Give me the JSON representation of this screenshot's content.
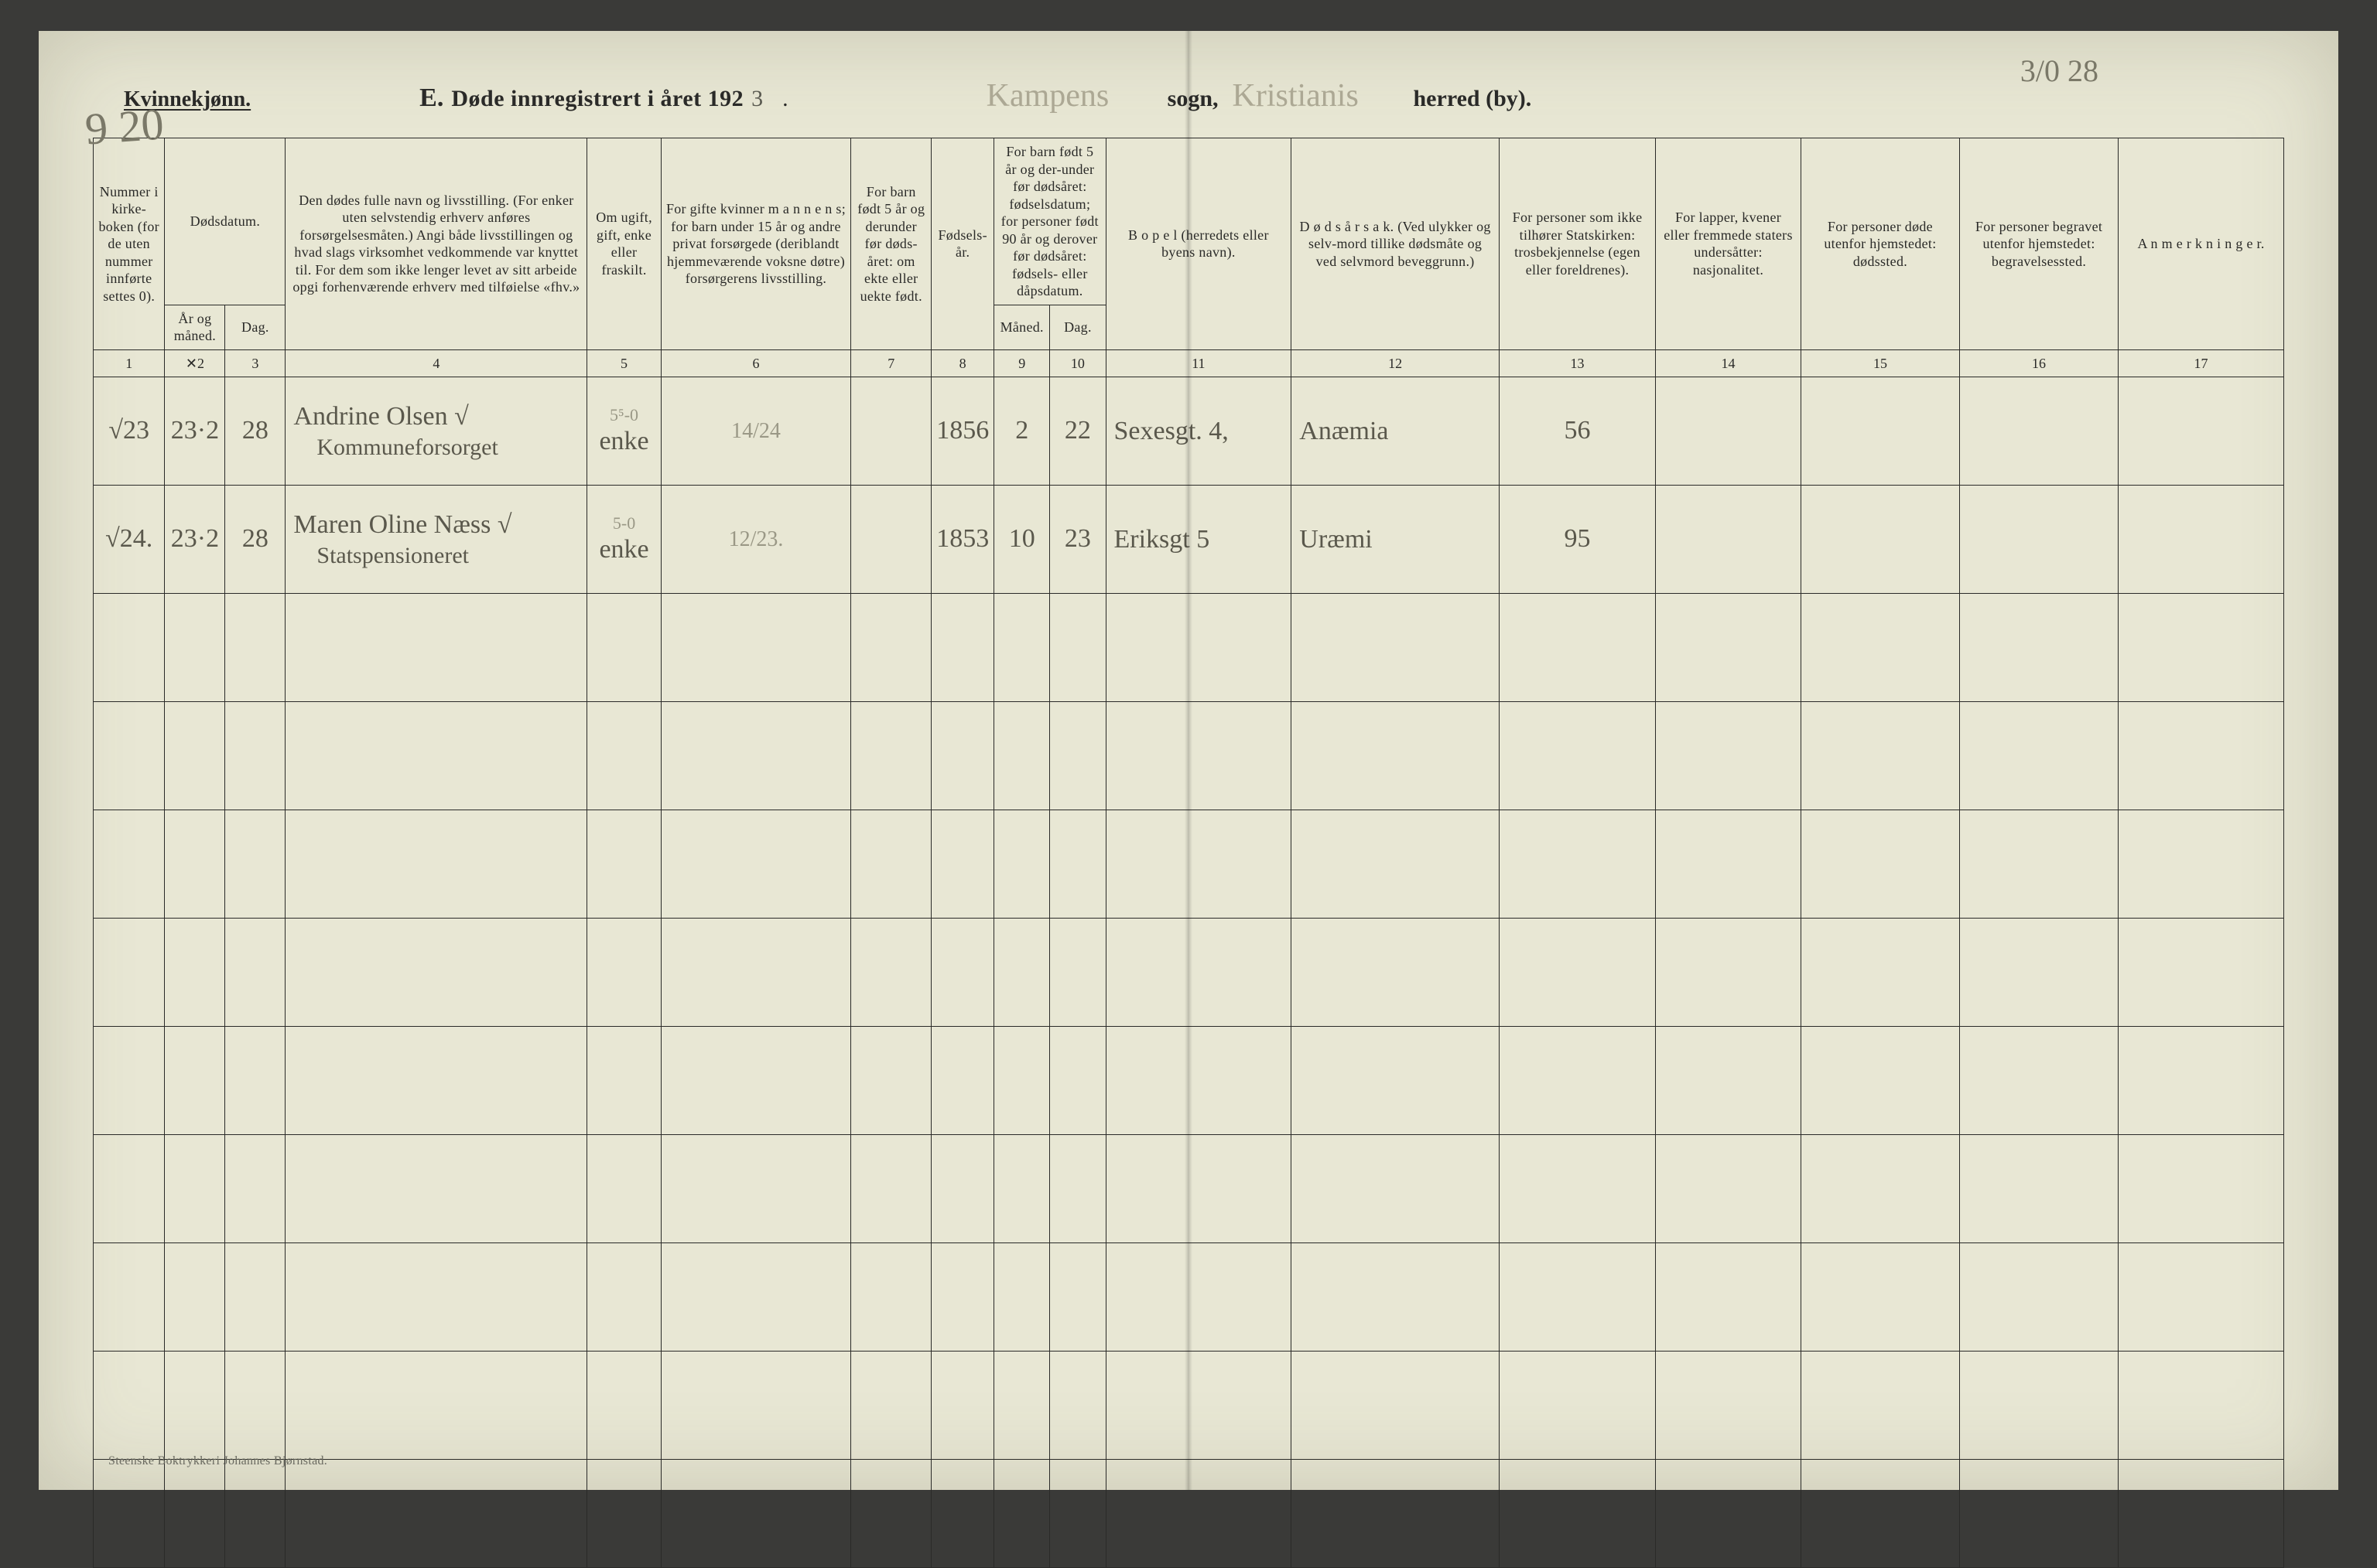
{
  "colors": {
    "paper": "#e8e7d4",
    "ink": "#2a2a28",
    "handwriting": "#5a584c",
    "faint_hand": "#aca894",
    "pencil": "#9a9886",
    "page_bg": "#3a3a38"
  },
  "header": {
    "gender": "Kvinnekjønn.",
    "title_letter": "E.",
    "title_main": "Døde innregistrert i året 192",
    "year_suffix_hand": "3",
    "title_period": ".",
    "sogn_value": "Kampens",
    "sogn_label": "sogn,",
    "herred_value": "Kristianis",
    "herred_label": "herred (by).",
    "top_right_annotation": "3/0 28",
    "margin_annotation": "9 20"
  },
  "columns": {
    "c1": "Nummer i kirke-boken (for de uten nummer innførte settes 0).",
    "c2_group": "Dødsdatum.",
    "c2": "År og måned.",
    "c3": "Dag.",
    "c4": "Den dødes fulle navn og livsstilling. (For enker uten selvstendig erhverv anføres forsørgelsesmåten.) Angi både livsstillingen og hvad slags virksomhet vedkommende var knyttet til. For dem som ikke lenger levet av sitt arbeide opgi forhenværende erhverv med tilføielse «fhv.»",
    "c5": "Om ugift, gift, enke eller fraskilt.",
    "c6": "For gifte kvinner m a n n e n s; for barn under 15 år og andre privat forsørgede (deriblandt hjemmeværende voksne døtre) forsørgerens livsstilling.",
    "c7": "For barn født 5 år og derunder før døds-året: om ekte eller uekte født.",
    "c8": "Fødsels-år.",
    "c9_group": "For barn født 5 år og der-under før dødsåret: fødselsdatum; for personer født 90 år og derover før dødsåret: fødsels- eller dåpsdatum.",
    "c9": "Måned.",
    "c10": "Dag.",
    "c11": "B o p e l (herredets eller byens navn).",
    "c12": "D ø d s å r s a k. (Ved ulykker og selv-mord tillike dødsmåte og ved selvmord beveggrunn.)",
    "c13": "For personer som ikke tilhører Statskirken: trosbekjennelse (egen eller foreldrenes).",
    "c14": "For lapper, kvener eller fremmede staters undersåtter: nasjonalitet.",
    "c15": "For personer døde utenfor hjemstedet: dødssted.",
    "c16": "For personer begravet utenfor hjemstedet: begravelsessted.",
    "c17": "A n m e r k n i n g e r."
  },
  "colnums": [
    "1",
    "2",
    "3",
    "4",
    "5",
    "6",
    "7",
    "8",
    "9",
    "10",
    "11",
    "12",
    "13",
    "14",
    "15",
    "16",
    "17"
  ],
  "colnum_2_annot": "✕",
  "rows": [
    {
      "num": "√23",
      "aar_mnd": "23·2",
      "dag": "28",
      "navn_l1": "Andrine Olsen   √",
      "navn_l2": "Kommuneforsorget",
      "sivilstand_sup": "5⁵-0",
      "sivilstand": "enke",
      "forsorger": "14/24",
      "ekte": "",
      "faar": "1856",
      "fmnd": "2",
      "fdag": "22",
      "bopel": "Sexesgt. 4,",
      "dodsarsak": "Anæmia",
      "tros": "56",
      "nasj": "",
      "dsted": "",
      "begr": "",
      "anm": ""
    },
    {
      "num": "√24.",
      "aar_mnd": "23·2",
      "dag": "28",
      "navn_l1": "Maren Oline Næss √",
      "navn_l2": "Statspensioneret",
      "sivilstand_sup": "5-0",
      "sivilstand": "enke",
      "forsorger": "12/23.",
      "ekte": "",
      "faar": "1853",
      "fmnd": "10",
      "fdag": "23",
      "bopel": "Eriksgt 5",
      "dodsarsak": "Uræmi",
      "tros": "95",
      "nasj": "",
      "dsted": "",
      "begr": "",
      "anm": ""
    }
  ],
  "empty_row_count": 9,
  "footer": "Steenske Boktrykkeri Johannes Bjørnstad."
}
